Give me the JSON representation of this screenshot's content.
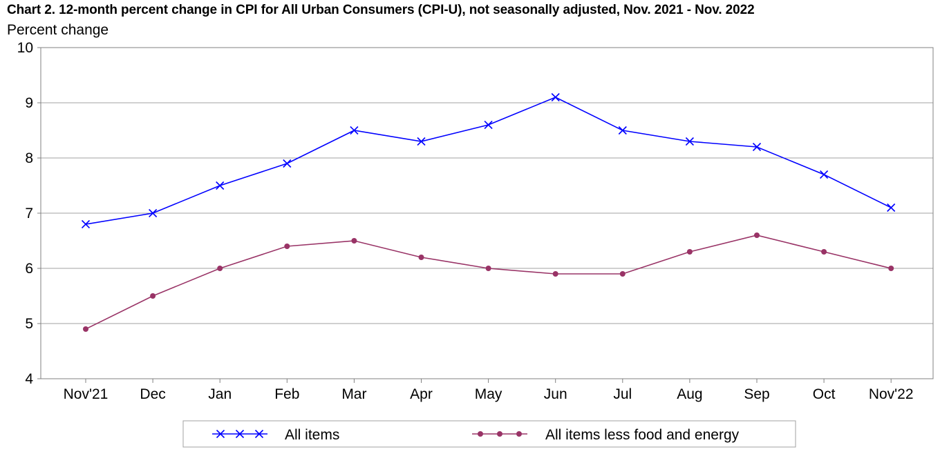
{
  "chart_data": {
    "type": "line",
    "title": "Chart 2. 12-month percent change in CPI for All Urban Consumers (CPI-U), not seasonally adjusted, Nov. 2021 - Nov. 2022",
    "ylabel": "Percent change",
    "xlabel": "",
    "categories": [
      "Nov'21",
      "Dec",
      "Jan",
      "Feb",
      "Mar",
      "Apr",
      "May",
      "Jun",
      "Jul",
      "Aug",
      "Sep",
      "Oct",
      "Nov'22"
    ],
    "ylim": [
      4,
      10
    ],
    "yticks": [
      "4",
      "5",
      "6",
      "7",
      "8",
      "9",
      "10"
    ],
    "grid": true,
    "legend_position": "bottom",
    "series": [
      {
        "name": "All items",
        "marker": "x",
        "color": "#0000ff",
        "values": [
          6.8,
          7.0,
          7.5,
          7.9,
          8.5,
          8.3,
          8.6,
          9.1,
          8.5,
          8.3,
          8.2,
          7.7,
          7.1
        ]
      },
      {
        "name": "All items less food and energy",
        "marker": "circle",
        "color": "#993366",
        "values": [
          4.9,
          5.5,
          6.0,
          6.4,
          6.5,
          6.2,
          6.0,
          5.9,
          5.9,
          6.3,
          6.6,
          6.3,
          6.0
        ]
      }
    ]
  }
}
